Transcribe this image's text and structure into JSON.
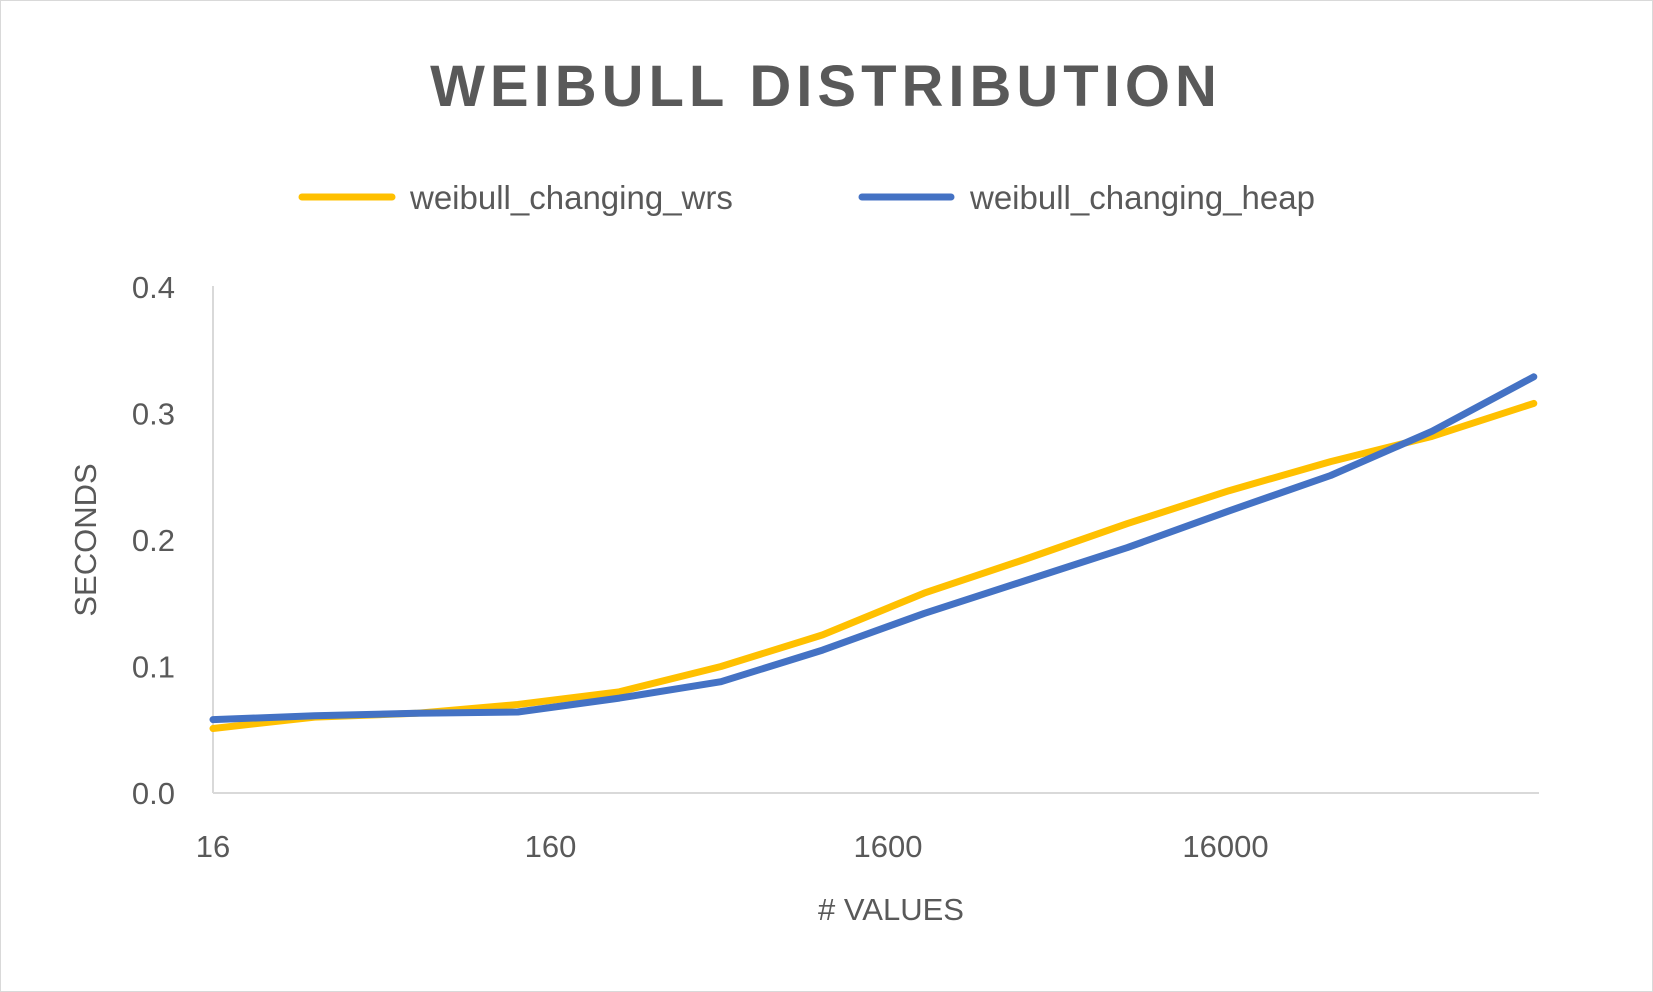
{
  "chart_data": {
    "type": "line",
    "title": "WEIBULL DISTRIBUTION",
    "xlabel": "# VALUES",
    "ylabel": "SECONDS",
    "x_scale": "log",
    "x_tick_labels": [
      "16",
      "160",
      "1600",
      "16000"
    ],
    "y_tick_labels": [
      "0.0",
      "0.1",
      "0.2",
      "0.3",
      "0.4"
    ],
    "ylim": [
      0,
      0.4
    ],
    "grid": false,
    "legend_position": "top",
    "x": [
      16,
      32,
      64,
      128,
      256,
      512,
      1024,
      2048,
      4096,
      8192,
      16384,
      32768,
      65536,
      131072
    ],
    "series": [
      {
        "name": "weibull_changing_wrs",
        "color": "#FFC000",
        "values": [
          0.051,
          0.06,
          0.063,
          0.07,
          0.08,
          0.1,
          0.125,
          0.158,
          0.185,
          0.213,
          0.239,
          0.262,
          0.282,
          0.308
        ]
      },
      {
        "name": "weibull_changing_heap",
        "color": "#4472C4",
        "values": [
          0.058,
          0.061,
          0.063,
          0.064,
          0.075,
          0.088,
          0.113,
          0.142,
          0.168,
          0.194,
          0.223,
          0.251,
          0.286,
          0.329
        ]
      }
    ]
  }
}
